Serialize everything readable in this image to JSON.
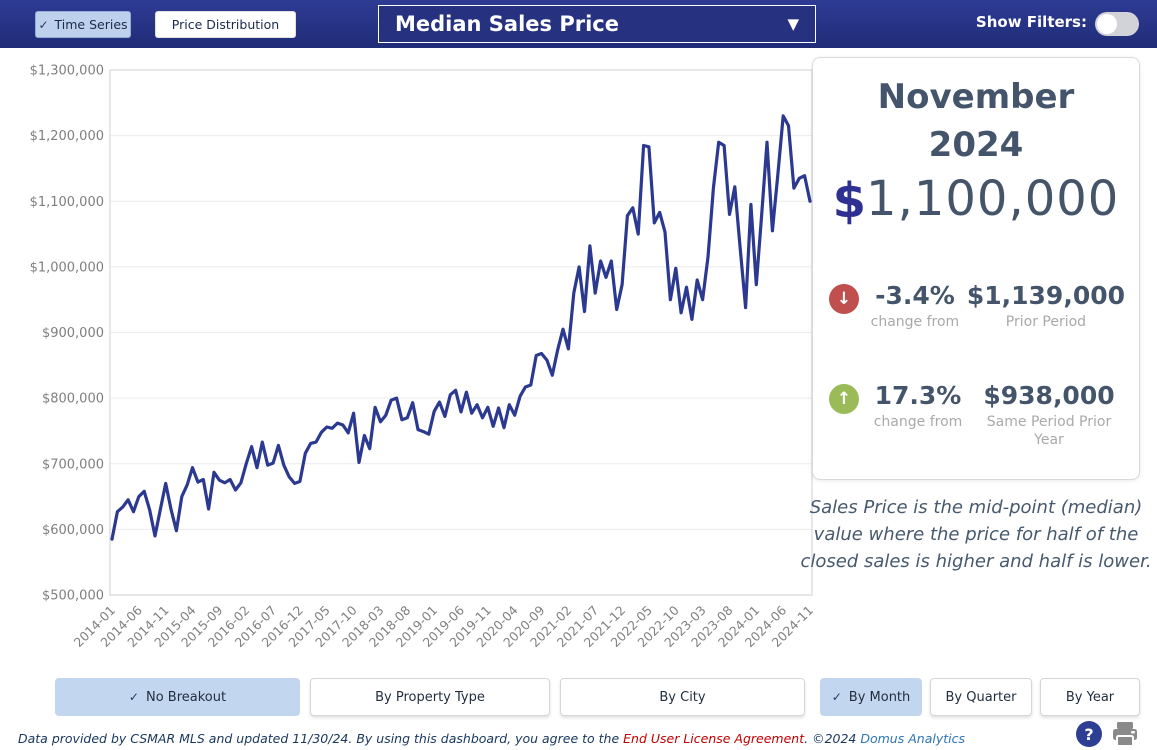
{
  "icons": {
    "check": "✓",
    "caret_down": "▼",
    "arrow_down": "↓",
    "arrow_up": "↑",
    "question": "?"
  },
  "colors": {
    "topbar_navy": "#232f7d",
    "line": "#2b3990",
    "selected_button_blue": "#c3d6ef",
    "down_red": "#c0504d",
    "up_green": "#9bbb59",
    "slate_text": "#44546a",
    "muted_gray": "#a9a9a9",
    "eula_red": "#c00000",
    "link_blue": "#2e75b6"
  },
  "topbar": {
    "time_series_label": "Time Series",
    "price_distribution_label": "Price Distribution",
    "metric_dropdown_value": "Median Sales Price",
    "show_filters_label": "Show Filters:",
    "show_filters_state": "off"
  },
  "summary_panel": {
    "month_line1": "November",
    "month_line2": "2024",
    "currency_symbol": "$",
    "value": "1,100,000",
    "prior_period": {
      "pct": "-3.4%",
      "change_label": "change from",
      "amount": "$1,139,000",
      "label": "Prior Period",
      "direction": "down"
    },
    "prior_year": {
      "pct": "17.3%",
      "change_label": "change from",
      "amount": "$938,000",
      "label": "Same Period Prior Year",
      "direction": "up"
    },
    "description": "Sales Price is the mid-point (median) value where the price for half of the closed sales is higher and half is lower."
  },
  "breakout_buttons": [
    {
      "label": "No Breakout",
      "checked": true
    },
    {
      "label": "By Property Type",
      "checked": false
    },
    {
      "label": "By City",
      "checked": false
    }
  ],
  "period_buttons": [
    {
      "label": "By Month",
      "checked": true
    },
    {
      "label": "By Quarter",
      "checked": false
    },
    {
      "label": "By Year",
      "checked": false
    }
  ],
  "footer": {
    "text_part1": "Data provided by CSMAR MLS and updated 11/30/24.  By using this dashboard, you agree to the ",
    "eula_link": "End User License Agreement",
    "text_part2": ".  ©2024 ",
    "brand_link": "Domus Analytics"
  },
  "chart_data": {
    "type": "line",
    "title": "Median Sales Price",
    "xlabel": "",
    "ylabel": "",
    "legend": null,
    "grid": true,
    "line_color": "#2b3990",
    "ylim": [
      500000,
      1300000
    ],
    "yticks": [
      500000,
      600000,
      700000,
      800000,
      900000,
      1000000,
      1100000,
      1200000,
      1300000
    ],
    "ytick_labels": [
      "$500,000",
      "$600,000",
      "$700,000",
      "$800,000",
      "$900,000",
      "$1,000,000",
      "$1,100,000",
      "$1,200,000",
      "$1,300,000"
    ],
    "x_tick_step": 5,
    "x_tick_labels_shown": [
      "2014-01",
      "2014-06",
      "2014-11",
      "2015-04",
      "2015-09",
      "2016-02",
      "2016-07",
      "2016-12",
      "2017-05",
      "2017-10",
      "2018-03",
      "2018-08",
      "2019-01",
      "2019-06",
      "2019-11",
      "2020-04",
      "2020-09",
      "2021-02",
      "2021-07",
      "2021-12",
      "2022-05",
      "2022-10",
      "2023-03",
      "2023-08",
      "2024-01",
      "2024-06",
      "2024-11"
    ],
    "x": [
      "2014-01",
      "2014-02",
      "2014-03",
      "2014-04",
      "2014-05",
      "2014-06",
      "2014-07",
      "2014-08",
      "2014-09",
      "2014-10",
      "2014-11",
      "2014-12",
      "2015-01",
      "2015-02",
      "2015-03",
      "2015-04",
      "2015-05",
      "2015-06",
      "2015-07",
      "2015-08",
      "2015-09",
      "2015-10",
      "2015-11",
      "2015-12",
      "2016-01",
      "2016-02",
      "2016-03",
      "2016-04",
      "2016-05",
      "2016-06",
      "2016-07",
      "2016-08",
      "2016-09",
      "2016-10",
      "2016-11",
      "2016-12",
      "2017-01",
      "2017-02",
      "2017-03",
      "2017-04",
      "2017-05",
      "2017-06",
      "2017-07",
      "2017-08",
      "2017-09",
      "2017-10",
      "2017-11",
      "2017-12",
      "2018-01",
      "2018-02",
      "2018-03",
      "2018-04",
      "2018-05",
      "2018-06",
      "2018-07",
      "2018-08",
      "2018-09",
      "2018-10",
      "2018-11",
      "2018-12",
      "2019-01",
      "2019-02",
      "2019-03",
      "2019-04",
      "2019-05",
      "2019-06",
      "2019-07",
      "2019-08",
      "2019-09",
      "2019-10",
      "2019-11",
      "2019-12",
      "2020-01",
      "2020-02",
      "2020-03",
      "2020-04",
      "2020-05",
      "2020-06",
      "2020-07",
      "2020-08",
      "2020-09",
      "2020-10",
      "2020-11",
      "2020-12",
      "2021-01",
      "2021-02",
      "2021-03",
      "2021-04",
      "2021-05",
      "2021-06",
      "2021-07",
      "2021-08",
      "2021-09",
      "2021-10",
      "2021-11",
      "2021-12",
      "2022-01",
      "2022-02",
      "2022-03",
      "2022-04",
      "2022-05",
      "2022-06",
      "2022-07",
      "2022-08",
      "2022-09",
      "2022-10",
      "2022-11",
      "2022-12",
      "2023-01",
      "2023-02",
      "2023-03",
      "2023-04",
      "2023-05",
      "2023-06",
      "2023-07",
      "2023-08",
      "2023-09",
      "2023-10",
      "2023-11",
      "2023-12",
      "2024-01",
      "2024-02",
      "2024-03",
      "2024-04",
      "2024-05",
      "2024-06",
      "2024-07",
      "2024-08",
      "2024-09",
      "2024-10",
      "2024-11"
    ],
    "values": [
      585000,
      627000,
      634000,
      645000,
      627000,
      650000,
      658000,
      630000,
      590000,
      630000,
      670000,
      630000,
      598000,
      650000,
      668000,
      694000,
      672000,
      676000,
      631000,
      687000,
      675000,
      671000,
      676000,
      660000,
      671000,
      700000,
      726000,
      694000,
      733000,
      698000,
      701000,
      728000,
      698000,
      680000,
      670000,
      673000,
      716000,
      731000,
      733000,
      748000,
      756000,
      754000,
      762000,
      759000,
      747000,
      777000,
      702000,
      743000,
      723000,
      786000,
      764000,
      774000,
      797000,
      800000,
      767000,
      770000,
      793000,
      752000,
      749000,
      745000,
      780000,
      794000,
      772000,
      805000,
      812000,
      779000,
      809000,
      777000,
      790000,
      770000,
      786000,
      757000,
      785000,
      755000,
      790000,
      774000,
      803000,
      817000,
      820000,
      865000,
      868000,
      858000,
      835000,
      873000,
      905000,
      875000,
      960000,
      1000000,
      932000,
      1032000,
      960000,
      1009000,
      984000,
      1009000,
      935000,
      973000,
      1078000,
      1090000,
      1050000,
      1185000,
      1183000,
      1067000,
      1083000,
      1053000,
      950000,
      998000,
      930000,
      969000,
      920000,
      980000,
      950000,
      1015000,
      1120000,
      1190000,
      1185000,
      1080000,
      1122000,
      1028000,
      938000,
      1095000,
      973000,
      1080000,
      1190000,
      1055000,
      1140000,
      1230000,
      1215000,
      1120000,
      1135000,
      1139000,
      1100000
    ]
  }
}
